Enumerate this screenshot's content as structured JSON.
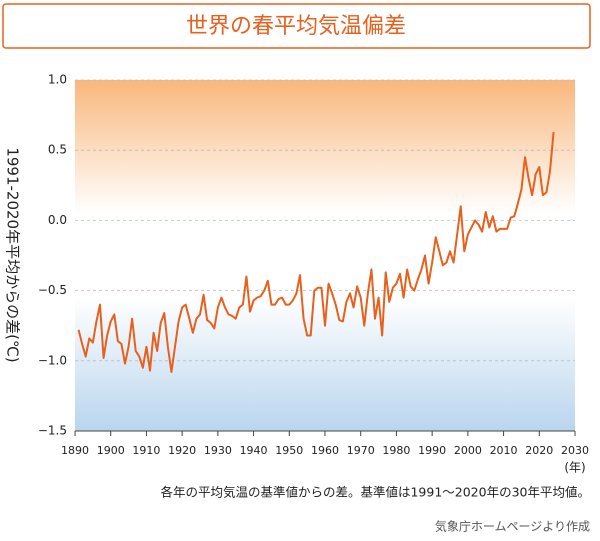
{
  "chart_data": {
    "type": "line",
    "title": "世界の春平均気温偏差",
    "y_label": "1991-2020年平均からの差(℃)",
    "x_label": "(年)",
    "note": "各年の平均気温の基準値からの差。基準値は1991〜2020年の30年平均値。",
    "source": "気象庁ホームページより作成",
    "x": [
      1891,
      1892,
      1893,
      1894,
      1895,
      1896,
      1897,
      1898,
      1899,
      1900,
      1901,
      1902,
      1903,
      1904,
      1905,
      1906,
      1907,
      1908,
      1909,
      1910,
      1911,
      1912,
      1913,
      1914,
      1915,
      1916,
      1917,
      1918,
      1919,
      1920,
      1921,
      1922,
      1923,
      1924,
      1925,
      1926,
      1927,
      1928,
      1929,
      1930,
      1931,
      1932,
      1933,
      1934,
      1935,
      1936,
      1937,
      1938,
      1939,
      1940,
      1941,
      1942,
      1943,
      1944,
      1945,
      1946,
      1947,
      1948,
      1949,
      1950,
      1951,
      1952,
      1953,
      1954,
      1955,
      1956,
      1957,
      1958,
      1959,
      1960,
      1961,
      1962,
      1963,
      1964,
      1965,
      1966,
      1967,
      1968,
      1969,
      1970,
      1971,
      1972,
      1973,
      1974,
      1975,
      1976,
      1977,
      1978,
      1979,
      1980,
      1981,
      1982,
      1983,
      1984,
      1985,
      1986,
      1987,
      1988,
      1989,
      1990,
      1991,
      1992,
      1993,
      1994,
      1995,
      1996,
      1997,
      1998,
      1999,
      2000,
      2001,
      2002,
      2003,
      2004,
      2005,
      2006,
      2007,
      2008,
      2009,
      2010,
      2011,
      2012,
      2013,
      2014,
      2015,
      2016,
      2017,
      2018,
      2019,
      2020,
      2021,
      2022,
      2023,
      2024
    ],
    "series": [
      {
        "color": "#e8601c",
        "values": [
          -0.78,
          -0.88,
          -0.97,
          -0.84,
          -0.87,
          -0.72,
          -0.6,
          -0.98,
          -0.82,
          -0.72,
          -0.67,
          -0.86,
          -0.88,
          -1.02,
          -0.9,
          -0.7,
          -0.93,
          -0.97,
          -1.05,
          -0.9,
          -1.07,
          -0.8,
          -0.93,
          -0.73,
          -0.66,
          -0.9,
          -1.08,
          -0.9,
          -0.72,
          -0.62,
          -0.6,
          -0.7,
          -0.8,
          -0.7,
          -0.67,
          -0.53,
          -0.71,
          -0.73,
          -0.77,
          -0.62,
          -0.55,
          -0.62,
          -0.67,
          -0.68,
          -0.7,
          -0.62,
          -0.6,
          -0.4,
          -0.65,
          -0.57,
          -0.55,
          -0.54,
          -0.5,
          -0.43,
          -0.6,
          -0.6,
          -0.56,
          -0.55,
          -0.6,
          -0.6,
          -0.57,
          -0.52,
          -0.39,
          -0.7,
          -0.82,
          -0.82,
          -0.5,
          -0.48,
          -0.48,
          -0.75,
          -0.45,
          -0.52,
          -0.6,
          -0.71,
          -0.72,
          -0.58,
          -0.52,
          -0.62,
          -0.47,
          -0.55,
          -0.75,
          -0.52,
          -0.35,
          -0.7,
          -0.55,
          -0.82,
          -0.37,
          -0.58,
          -0.48,
          -0.45,
          -0.38,
          -0.55,
          -0.35,
          -0.47,
          -0.5,
          -0.42,
          -0.35,
          -0.25,
          -0.45,
          -0.3,
          -0.12,
          -0.22,
          -0.32,
          -0.3,
          -0.22,
          -0.3,
          -0.1,
          0.1,
          -0.22,
          -0.1,
          -0.05,
          0.0,
          -0.03,
          -0.08,
          0.06,
          -0.05,
          0.03,
          -0.08,
          -0.06,
          -0.06,
          -0.06,
          0.02,
          0.03,
          0.12,
          0.22,
          0.45,
          0.3,
          0.18,
          0.33,
          0.38,
          0.18,
          0.2,
          0.35,
          0.63
        ]
      }
    ],
    "xlim": [
      1890,
      2030
    ],
    "xticks": [
      1890,
      1900,
      1910,
      1920,
      1930,
      1940,
      1950,
      1960,
      1970,
      1980,
      1990,
      2000,
      2010,
      2020,
      2030
    ],
    "ylim": [
      -1.5,
      1.0
    ],
    "yticks": [
      {
        "value": -1.5,
        "label": "−1.5"
      },
      {
        "value": -1.0,
        "label": "−1.0"
      },
      {
        "value": -0.5,
        "label": "−0.5"
      },
      {
        "value": 0.0,
        "label": "0.0"
      },
      0.5,
      {
        "value": 1.0,
        "label": "1.0"
      }
    ],
    "grid": true
  }
}
